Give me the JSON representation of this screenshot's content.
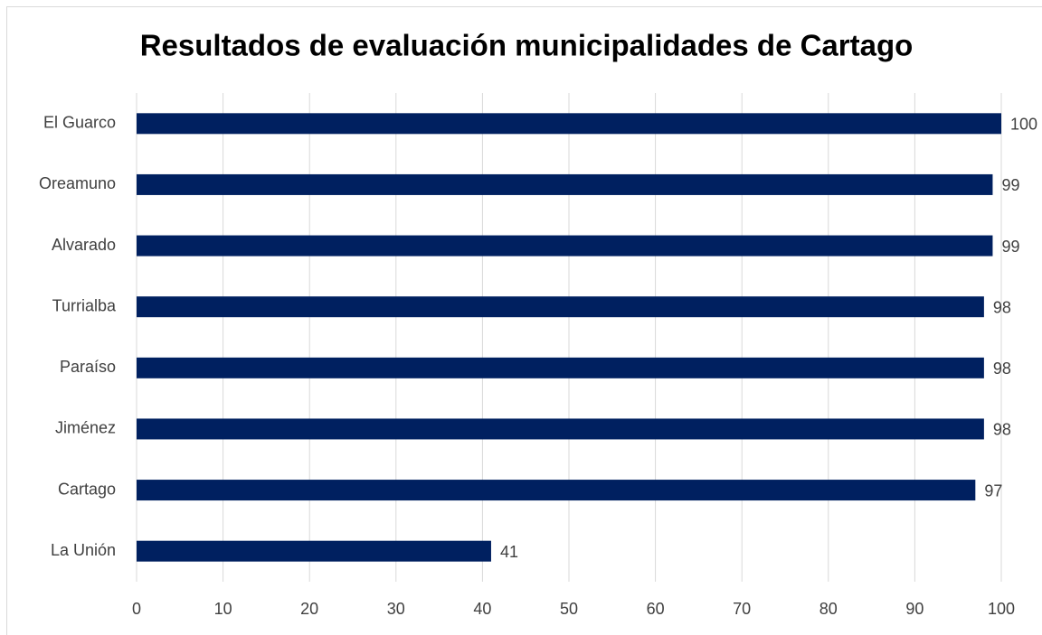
{
  "chart_data": {
    "type": "bar",
    "orientation": "horizontal",
    "title": "Resultados de evaluación municipalidades de Cartago",
    "categories": [
      "El Guarco",
      "Oreamuno",
      "Alvarado",
      "Turrialba",
      "Paraíso",
      "Jiménez",
      "Cartago",
      "La Unión"
    ],
    "values": [
      100,
      99,
      99,
      98,
      98,
      98,
      97,
      41
    ],
    "color": "#002060",
    "xlim": [
      0,
      100
    ],
    "xticks": [
      0,
      10,
      20,
      30,
      40,
      50,
      60,
      70,
      80,
      90,
      100
    ],
    "grid": true
  }
}
